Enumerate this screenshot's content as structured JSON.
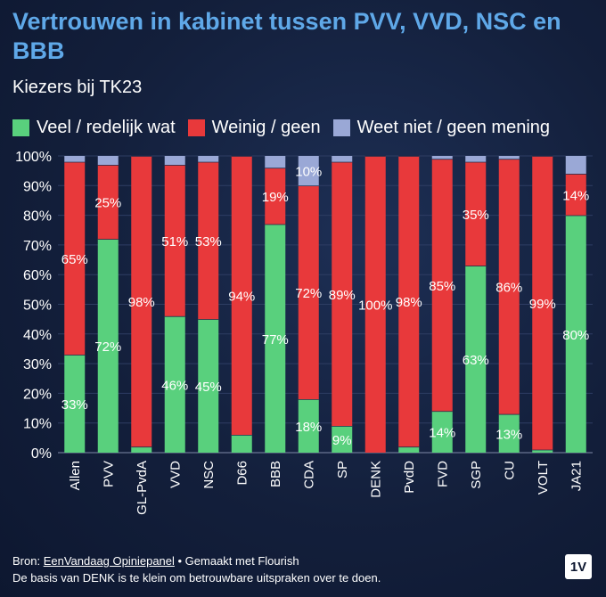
{
  "header": {
    "title": "Vertrouwen in kabinet tussen PVV, VVD, NSC en BBB",
    "subtitle": "Kiezers bij TK23"
  },
  "colors": {
    "green": "#59d07d",
    "red": "#e8393b",
    "grey": "#9aa8d6",
    "background": "#131f3b"
  },
  "chart_data": {
    "type": "bar",
    "stacked": true,
    "title": "Vertrouwen in kabinet tussen PVV, VVD, NSC en BBB",
    "subtitle": "Kiezers bij TK23",
    "legend_position": "top-left",
    "grid": true,
    "ylim": [
      0,
      100
    ],
    "y_ticks": [
      "0%",
      "10%",
      "20%",
      "30%",
      "40%",
      "50%",
      "60%",
      "70%",
      "80%",
      "90%",
      "100%"
    ],
    "categories": [
      "Allen",
      "PVV",
      "GL-PvdA",
      "VVD",
      "NSC",
      "D66",
      "BBB",
      "CDA",
      "SP",
      "DENK",
      "PvdD",
      "FVD",
      "SGP",
      "CU",
      "VOLT",
      "JA21"
    ],
    "series": [
      {
        "name": "Veel / redelijk wat",
        "values": [
          33,
          72,
          2,
          46,
          45,
          6,
          77,
          18,
          9,
          0,
          2,
          14,
          63,
          13,
          1,
          80
        ],
        "labels": [
          "33%",
          "72%",
          "",
          "46%",
          "45%",
          "",
          "77%",
          "18%",
          "9%",
          "",
          "",
          "14%",
          "63%",
          "13%",
          "",
          "80%"
        ]
      },
      {
        "name": "Weinig / geen",
        "values": [
          65,
          25,
          98,
          51,
          53,
          94,
          19,
          72,
          89,
          100,
          98,
          85,
          35,
          86,
          99,
          14
        ],
        "labels": [
          "65%",
          "25%",
          "98%",
          "51%",
          "53%",
          "94%",
          "19%",
          "72%",
          "89%",
          "100%",
          "98%",
          "85%",
          "35%",
          "86%",
          "99%",
          "14%"
        ]
      },
      {
        "name": "Weet niet / geen mening",
        "values": [
          2,
          3,
          0,
          3,
          2,
          0,
          4,
          10,
          2,
          0,
          0,
          1,
          2,
          1,
          0,
          6
        ],
        "labels": [
          "",
          "",
          "",
          "",
          "",
          "",
          "",
          "10%",
          "",
          "",
          "",
          "",
          "",
          "",
          "",
          ""
        ]
      }
    ]
  },
  "footer": {
    "source_prefix": "Bron: ",
    "source_link": "EenVandaag Opiniepanel",
    "made_with": " • Gemaakt met Flourish",
    "note": "De basis van DENK is te klein om betrouwbare uitspraken over te doen.",
    "logo": "1V"
  }
}
